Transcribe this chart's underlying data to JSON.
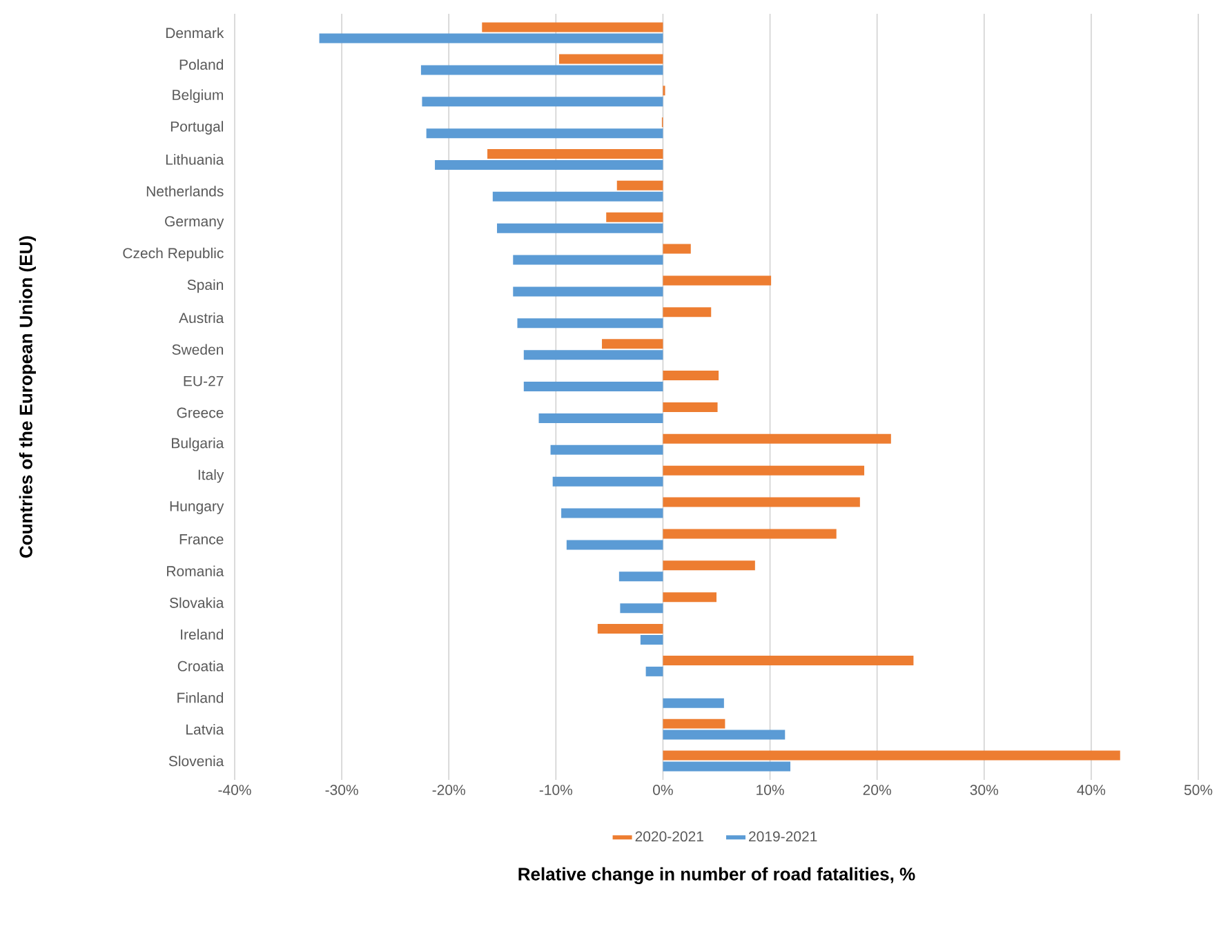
{
  "chart_data": {
    "type": "bar",
    "orientation": "horizontal",
    "xlabel": "Relative change in number of road fatalities, %",
    "ylabel": "Countries of the European Union (EU)",
    "categories": [
      "Denmark",
      "Poland",
      "Belgium",
      "Portugal",
      "Lithuania",
      "Netherlands",
      "Germany",
      "Czech Republic",
      "Spain",
      "Austria",
      "Sweden",
      "EU-27",
      "Greece",
      "Bulgaria",
      "Italy",
      "Hungary",
      "France",
      "Romania",
      "Slovakia",
      "Ireland",
      "Croatia",
      "Finland",
      "Latvia",
      "Slovenia"
    ],
    "series": [
      {
        "name": "2020-2021",
        "color": "#ed7d31",
        "values": [
          -16.9,
          -9.7,
          0.2,
          -0.1,
          -16.4,
          -4.3,
          -5.3,
          2.6,
          10.1,
          4.5,
          -5.7,
          5.2,
          5.1,
          21.3,
          18.8,
          18.4,
          16.2,
          8.6,
          5.0,
          -6.1,
          23.4,
          null,
          5.8,
          42.7
        ]
      },
      {
        "name": "2019-2021",
        "color": "#5b9bd5",
        "values": [
          -32.1,
          -22.6,
          -22.5,
          -22.1,
          -21.3,
          -15.9,
          -15.5,
          -14.0,
          -14.0,
          -13.6,
          -13.0,
          -13.0,
          -11.6,
          -10.5,
          -10.3,
          -9.5,
          -9.0,
          -4.1,
          -4.0,
          -2.1,
          -1.6,
          5.7,
          11.4,
          11.9
        ]
      }
    ],
    "xlim": [
      -40,
      50
    ],
    "xticks": [
      {
        "value": -40,
        "label": "-40%"
      },
      {
        "value": -30,
        "label": "-30%"
      },
      {
        "value": -20,
        "label": "-20%"
      },
      {
        "value": -10,
        "label": "-10%"
      },
      {
        "value": 0,
        "label": "0%"
      },
      {
        "value": 10,
        "label": "10%"
      },
      {
        "value": 20,
        "label": "20%"
      },
      {
        "value": 30,
        "label": "30%"
      },
      {
        "value": 40,
        "label": "40%"
      },
      {
        "value": 50,
        "label": "50%"
      }
    ],
    "grid": "x",
    "legend": "bottom"
  }
}
